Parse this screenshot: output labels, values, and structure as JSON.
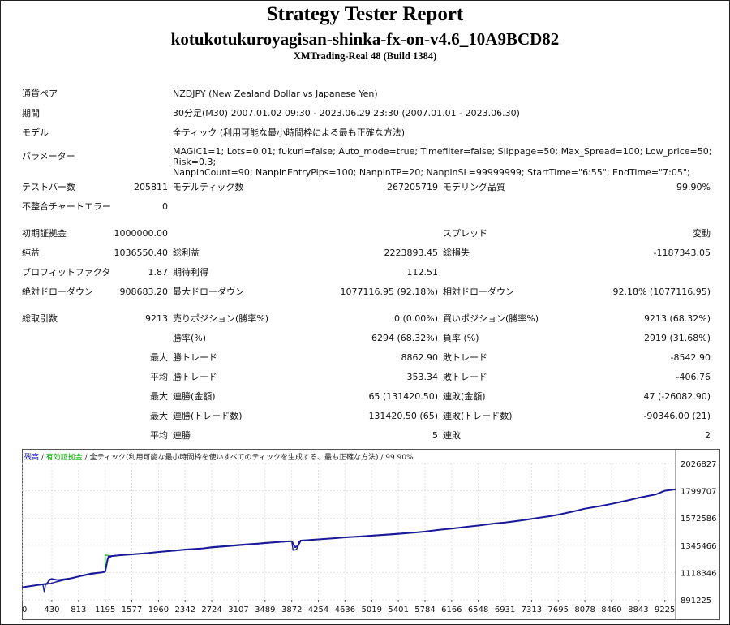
{
  "header": {
    "title": "Strategy Tester Report",
    "ea_name": "kotukotukuroyagisan-shinka-fx-on-v4.6_10A9BCD82",
    "server": "XMTrading-Real 48 (Build 1384)"
  },
  "info": {
    "symbol_label": "通貨ペア",
    "symbol_value": "NZDJPY (New Zealand Dollar vs Japanese Yen)",
    "period_label": "期間",
    "period_value": "30分足(M30) 2007.01.02 09:30 - 2023.06.29 23:30 (2007.01.01 - 2023.06.30)",
    "model_label": "モデル",
    "model_value": "全ティック (利用可能な最小時間枠による最も正確な方法)",
    "params_label": "パラメーター",
    "params_line1": "MAGIC1=1; Lots=0.01; fukuri=false; Auto_mode=true; Timefilter=false; Slippage=50; Max_Spread=100; Low_price=50; Risk=0.3;",
    "params_line2": "NanpinCount=90; NanpinEntryPips=100; NanpinTP=20; NanpinSL=99999999; StartTime=\"6:55\"; EndTime=\"7:05\";"
  },
  "stats": {
    "bars_label": "テストバー数",
    "bars_value": "205811",
    "ticks_label": "モデルティック数",
    "ticks_value": "267205719",
    "quality_label": "モデリング品質",
    "quality_value": "99.90%",
    "mismatch_label": "不整合チャートエラー",
    "mismatch_value": "0",
    "deposit_label": "初期証拠金",
    "deposit_value": "1000000.00",
    "spread_label": "スプレッド",
    "spread_value": "変動",
    "net_label": "純益",
    "net_value": "1036550.40",
    "gross_profit_label": "総利益",
    "gross_profit_value": "2223893.45",
    "gross_loss_label": "総損失",
    "gross_loss_value": "-1187343.05",
    "pf_label": "プロフィットファクタ",
    "pf_value": "1.87",
    "expected_label": "期待利得",
    "expected_value": "112.51",
    "abs_dd_label": "絶対ドローダウン",
    "abs_dd_value": "908683.20",
    "max_dd_label": "最大ドローダウン",
    "max_dd_value": "1077116.95 (92.18%)",
    "rel_dd_label": "相対ドローダウン",
    "rel_dd_value": "92.18% (1077116.95)",
    "total_trades_label": "総取引数",
    "total_trades_value": "9213",
    "short_label": "売りポジション(勝率%)",
    "short_value": "0 (0.00%)",
    "long_label": "買いポジション(勝率%)",
    "long_value": "9213 (68.32%)",
    "winrate_label": "勝率(%)",
    "winrate_value": "6294 (68.32%)",
    "lossrate_label": "負率 (%)",
    "lossrate_value": "2919 (31.68%)",
    "max_word": "最大",
    "avg_word": "平均",
    "max_win_label": "勝トレード",
    "max_win_value": "8862.90",
    "max_loss_label": "敗トレード",
    "max_loss_value": "-8542.90",
    "avg_win_label": "勝トレード",
    "avg_win_value": "353.34",
    "avg_loss_label": "敗トレード",
    "avg_loss_value": "-406.76",
    "max_cons_win_amt_label": "連勝(金額)",
    "max_cons_win_amt_value": "65 (131420.50)",
    "max_cons_loss_amt_label": "連敗(金額)",
    "max_cons_loss_amt_value": "47 (-26082.90)",
    "max_cons_win_cnt_label": "連勝(トレード数)",
    "max_cons_win_cnt_value": "131420.50 (65)",
    "max_cons_loss_cnt_label": "連敗(トレード数)",
    "max_cons_loss_cnt_value": "-90346.00 (21)",
    "avg_cons_win_label": "連勝",
    "avg_cons_win_value": "5",
    "avg_cons_loss_label": "連敗",
    "avg_cons_loss_value": "2"
  },
  "chart_data": {
    "type": "line",
    "legend": {
      "balance": "残高",
      "sep1": " / ",
      "equity": "有効証拠金",
      "sep2": " / ",
      "model": "全ティック(利用可能な最小時間枠を使いすべてのティックを生成する、最も正確な方法)",
      "sep3": " / ",
      "quality": "99.90%"
    },
    "legend_colors": {
      "balance": "#0000cc",
      "equity": "#00aa00",
      "text": "#222222"
    },
    "xticks": [
      0,
      430,
      813,
      1195,
      1577,
      1960,
      2342,
      2724,
      3107,
      3489,
      3872,
      4254,
      4636,
      5019,
      5401,
      5784,
      6166,
      6548,
      6931,
      7313,
      7695,
      8078,
      8460,
      8843,
      9225
    ],
    "yticks": [
      2026827,
      1799707,
      1572586,
      1345466,
      1118346,
      891225
    ],
    "xlim": [
      0,
      9380
    ],
    "ylim": [
      891225,
      2026827
    ],
    "grid": true,
    "series": [
      {
        "color": "#1a1a99",
        "values": [
          [
            0,
            995000
          ],
          [
            180,
            1010000
          ],
          [
            300,
            1020000
          ],
          [
            360,
            1025000
          ],
          [
            400,
            1060000
          ],
          [
            430,
            1065000
          ],
          [
            520,
            1055000
          ],
          [
            700,
            1070000
          ],
          [
            813,
            1085000
          ],
          [
            880,
            1095000
          ],
          [
            1000,
            1110000
          ],
          [
            1150,
            1120000
          ],
          [
            1195,
            1125000
          ],
          [
            1230,
            1230000
          ],
          [
            1280,
            1255000
          ],
          [
            1400,
            1262000
          ],
          [
            1577,
            1270000
          ],
          [
            1800,
            1280000
          ],
          [
            1960,
            1290000
          ],
          [
            2200,
            1302000
          ],
          [
            2342,
            1310000
          ],
          [
            2600,
            1320000
          ],
          [
            2724,
            1330000
          ],
          [
            3000,
            1342000
          ],
          [
            3107,
            1348000
          ],
          [
            3400,
            1360000
          ],
          [
            3489,
            1365000
          ],
          [
            3800,
            1378000
          ],
          [
            3872,
            1380000
          ],
          [
            3920,
            1330000
          ],
          [
            3960,
            1340000
          ],
          [
            4000,
            1385000
          ],
          [
            4254,
            1395000
          ],
          [
            4500,
            1405000
          ],
          [
            4636,
            1412000
          ],
          [
            4900,
            1420000
          ],
          [
            5019,
            1425000
          ],
          [
            5300,
            1436000
          ],
          [
            5401,
            1440000
          ],
          [
            5700,
            1455000
          ],
          [
            5784,
            1460000
          ],
          [
            6000,
            1475000
          ],
          [
            6166,
            1485000
          ],
          [
            6400,
            1500000
          ],
          [
            6548,
            1510000
          ],
          [
            6800,
            1528000
          ],
          [
            6931,
            1535000
          ],
          [
            7200,
            1555000
          ],
          [
            7313,
            1565000
          ],
          [
            7600,
            1590000
          ],
          [
            7695,
            1600000
          ],
          [
            7900,
            1625000
          ],
          [
            8078,
            1650000
          ],
          [
            8300,
            1672000
          ],
          [
            8460,
            1690000
          ],
          [
            8700,
            1720000
          ],
          [
            8843,
            1740000
          ],
          [
            9100,
            1770000
          ],
          [
            9225,
            1800000
          ],
          [
            9380,
            1812000
          ]
        ]
      },
      {
        "color": "#1a1a99",
        "values": [
          [
            0,
            995000
          ],
          [
            300,
            1020000
          ],
          [
            320,
            960000
          ],
          [
            340,
            1018000
          ],
          [
            813,
            1085000
          ],
          [
            1195,
            1125000
          ],
          [
            1240,
            1255000
          ],
          [
            3872,
            1380000
          ],
          [
            3890,
            1305000
          ],
          [
            3940,
            1310000
          ],
          [
            3980,
            1380000
          ],
          [
            4254,
            1395000
          ],
          [
            5784,
            1460000
          ]
        ]
      }
    ]
  }
}
